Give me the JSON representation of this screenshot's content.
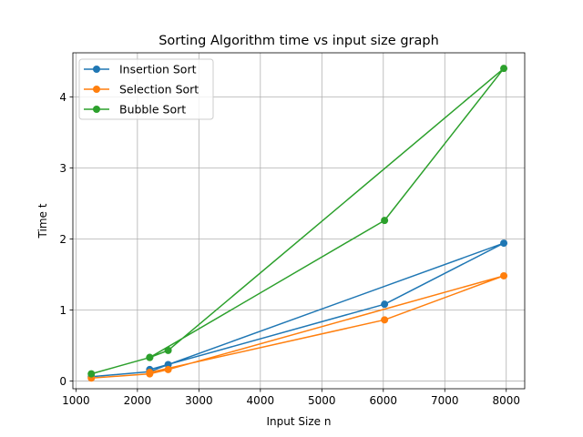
{
  "chart_data": {
    "type": "line",
    "title": "Sorting Algorithm time vs input size graph",
    "xlabel": "Input Size n",
    "ylabel": "Time t",
    "xlim": [
      950,
      8300
    ],
    "ylim": [
      -0.11,
      4.62
    ],
    "xticks": [
      1000,
      2000,
      3000,
      4000,
      5000,
      6000,
      7000,
      8000
    ],
    "yticks": [
      0,
      1,
      2,
      3,
      4
    ],
    "grid": true,
    "legend_position": "top-left",
    "x": [
      1250,
      2200,
      2500,
      7960,
      6020,
      2200
    ],
    "series": [
      {
        "name": "Insertion Sort",
        "color": "#1f77b4",
        "values": [
          0.06,
          0.13,
          0.23,
          1.94,
          1.08,
          0.16
        ]
      },
      {
        "name": "Selection Sort",
        "color": "#ff7f0e",
        "values": [
          0.04,
          0.1,
          0.16,
          1.48,
          0.86,
          0.12
        ]
      },
      {
        "name": "Bubble Sort",
        "color": "#2ca02c",
        "values": [
          0.1,
          0.33,
          0.43,
          4.4,
          2.26,
          0.33
        ]
      }
    ]
  }
}
